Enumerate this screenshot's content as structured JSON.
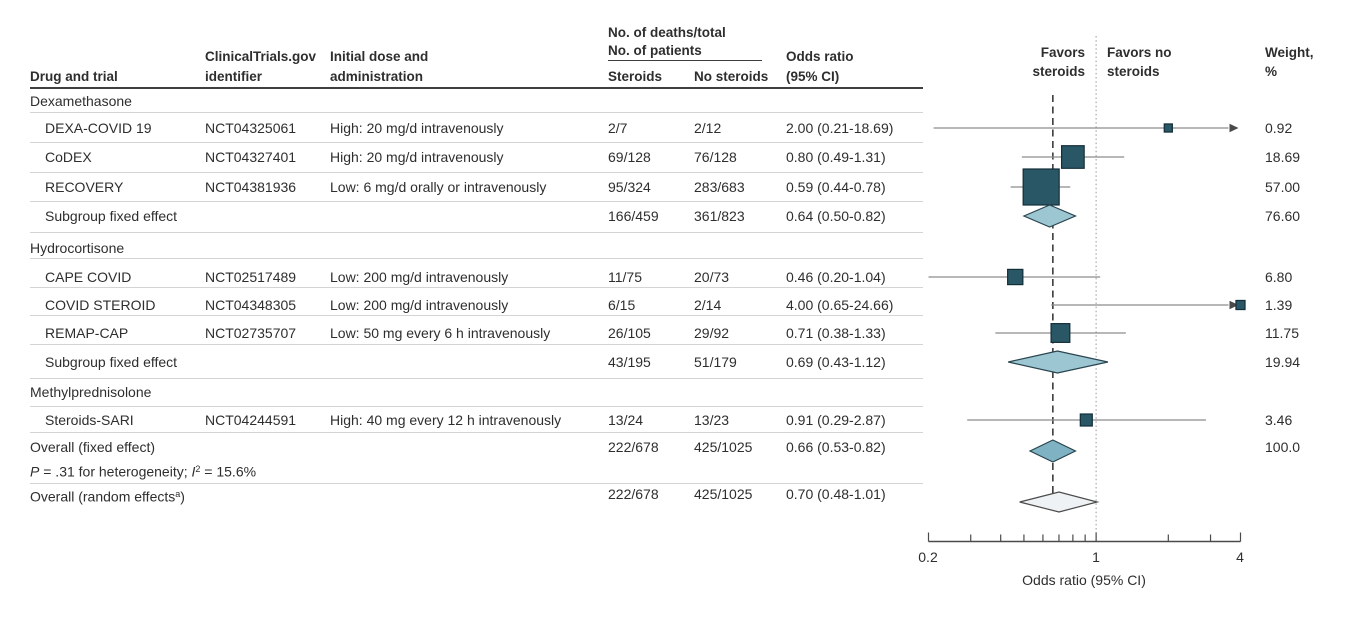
{
  "header": {
    "drug": "Drug and trial",
    "nct1": "ClinicalTrials.gov",
    "nct2": "identifier",
    "dose1": "Initial dose and",
    "dose2": "administration",
    "deaths1": "No. of deaths/total",
    "deaths2": "No. of patients",
    "steroids": "Steroids",
    "no_steroids": "No steroids",
    "or1": "Odds ratio",
    "or2": "(95% CI)",
    "favors_left1": "Favors",
    "favors_left2": "steroids",
    "favors_right1": "Favors no",
    "favors_right2": "steroids",
    "weight1": "Weight,",
    "weight2": "%"
  },
  "colors": {
    "marker_fill": "#2a5766",
    "marker_stroke": "#132e38",
    "subgroup_diamond": "#9cc6d1",
    "overall_fixed_diamond": "#7fb2c3",
    "overall_random_diamond": "#eef2f4",
    "ci_line": "#8c8c8c",
    "text": "#2e2e2e"
  },
  "chart_data": {
    "type": "forest",
    "x_scale": "log",
    "x_domain": [
      0.2,
      4
    ],
    "null_value": 1,
    "overall_estimate": 0.66,
    "axis_label": "Odds ratio (95% CI)",
    "tick_labels": [
      "0.2",
      "1",
      "4"
    ],
    "minor_ticks": [
      0.2,
      0.3,
      0.4,
      0.5,
      0.6,
      0.7,
      0.8,
      0.9,
      1,
      2,
      3,
      4
    ],
    "rows": [
      {
        "kind": "section",
        "label": "Dexamethasone"
      },
      {
        "kind": "trial",
        "label": "DEXA-COVID 19",
        "nct": "NCT04325061",
        "dose": "High: 20 mg/d intravenously",
        "deaths_steroids": "2/7",
        "deaths_no_steroids": "2/12",
        "or_text": "2.00 (0.21-18.69)",
        "or": 2.0,
        "ci_low": 0.21,
        "ci_high": 18.69,
        "weight": 0.92,
        "weight_text": "0.92"
      },
      {
        "kind": "trial",
        "label": "CoDEX",
        "nct": "NCT04327401",
        "dose": "High: 20 mg/d intravenously",
        "deaths_steroids": "69/128",
        "deaths_no_steroids": "76/128",
        "or_text": "0.80 (0.49-1.31)",
        "or": 0.8,
        "ci_low": 0.49,
        "ci_high": 1.31,
        "weight": 18.69,
        "weight_text": "18.69"
      },
      {
        "kind": "trial",
        "label": "RECOVERY",
        "nct": "NCT04381936",
        "dose": "Low: 6 mg/d orally or intravenously",
        "deaths_steroids": "95/324",
        "deaths_no_steroids": "283/683",
        "or_text": "0.59 (0.44-0.78)",
        "or": 0.59,
        "ci_low": 0.44,
        "ci_high": 0.78,
        "weight": 57.0,
        "weight_text": "57.00"
      },
      {
        "kind": "subgroup",
        "label": "Subgroup fixed effect",
        "deaths_steroids": "166/459",
        "deaths_no_steroids": "361/823",
        "or_text": "0.64 (0.50-0.82)",
        "or": 0.64,
        "ci_low": 0.5,
        "ci_high": 0.82,
        "weight_text": "76.60"
      },
      {
        "kind": "section",
        "label": "Hydrocortisone"
      },
      {
        "kind": "trial",
        "label": "CAPE COVID",
        "nct": "NCT02517489",
        "dose": "Low: 200 mg/d intravenously",
        "deaths_steroids": "11/75",
        "deaths_no_steroids": "20/73",
        "or_text": "0.46 (0.20-1.04)",
        "or": 0.46,
        "ci_low": 0.2,
        "ci_high": 1.04,
        "weight": 6.8,
        "weight_text": "6.80"
      },
      {
        "kind": "trial",
        "label": "COVID STEROID",
        "nct": "NCT04348305",
        "dose": "Low: 200 mg/d intravenously",
        "deaths_steroids": "6/15",
        "deaths_no_steroids": "2/14",
        "or_text": "4.00 (0.65-24.66)",
        "or": 4.0,
        "ci_low": 0.65,
        "ci_high": 24.66,
        "weight": 1.39,
        "weight_text": "1.39"
      },
      {
        "kind": "trial",
        "label": "REMAP-CAP",
        "nct": "NCT02735707",
        "dose": "Low: 50 mg every 6 h intravenously",
        "deaths_steroids": "26/105",
        "deaths_no_steroids": "29/92",
        "or_text": "0.71 (0.38-1.33)",
        "or": 0.71,
        "ci_low": 0.38,
        "ci_high": 1.33,
        "weight": 11.75,
        "weight_text": "11.75"
      },
      {
        "kind": "subgroup",
        "label": "Subgroup fixed effect",
        "deaths_steroids": "43/195",
        "deaths_no_steroids": "51/179",
        "or_text": "0.69 (0.43-1.12)",
        "or": 0.69,
        "ci_low": 0.43,
        "ci_high": 1.12,
        "weight_text": "19.94"
      },
      {
        "kind": "section",
        "label": "Methylprednisolone"
      },
      {
        "kind": "trial",
        "label": "Steroids-SARI",
        "nct": "NCT04244591",
        "dose": "High: 40 mg every 12 h intravenously",
        "deaths_steroids": "13/24",
        "deaths_no_steroids": "13/23",
        "or_text": "0.91 (0.29-2.87)",
        "or": 0.91,
        "ci_low": 0.29,
        "ci_high": 2.87,
        "weight": 3.46,
        "weight_text": "3.46"
      },
      {
        "kind": "overall_fixed",
        "label": "Overall (fixed effect)",
        "het": {
          "p": "P",
          "mid": " = .31 for heterogeneity; ",
          "i": "I",
          "sup": "2",
          "rest": " = 15.6%"
        },
        "deaths_steroids": "222/678",
        "deaths_no_steroids": "425/1025",
        "or_text": "0.66 (0.53-0.82)",
        "or": 0.66,
        "ci_low": 0.53,
        "ci_high": 0.82,
        "weight_text": "100.0"
      },
      {
        "kind": "overall_random",
        "label_main": "Overall (random effects",
        "label_sup": "a",
        "label_close": ")",
        "deaths_steroids": "222/678",
        "deaths_no_steroids": "425/1025",
        "or_text": "0.70 (0.48-1.01)",
        "or": 0.7,
        "ci_low": 0.48,
        "ci_high": 1.01
      }
    ]
  }
}
